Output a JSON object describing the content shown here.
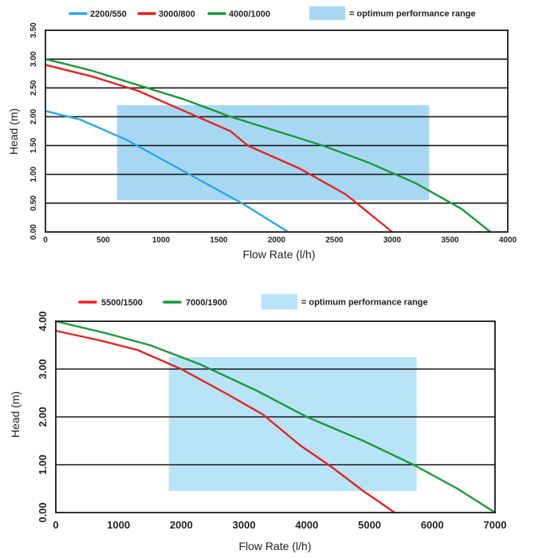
{
  "chart_data": [
    {
      "type": "line",
      "title": "",
      "xlabel": "Flow Rate (l/h)",
      "ylabel": "Head (m)",
      "xlim": [
        0,
        4000
      ],
      "ylim": [
        0,
        3.5
      ],
      "x_ticks": [
        "0",
        "500",
        "1000",
        "1500",
        "2000",
        "2500",
        "3000",
        "3500",
        "4000"
      ],
      "y_ticks": [
        "0.00",
        "0.50",
        "1.00",
        "1.50",
        "2.00",
        "2.50",
        "3.00",
        "3.50"
      ],
      "grid": "horizontal",
      "legend_position": "top",
      "optimum_range": {
        "label": "= optimum performance range",
        "x": [
          620,
          3320
        ],
        "y": [
          0.55,
          2.2
        ],
        "color": "#a7d8f3"
      },
      "series": [
        {
          "name": "2200/550",
          "color": "#2aa7e6",
          "points": [
            [
              0,
              2.1
            ],
            [
              300,
              1.95
            ],
            [
              700,
              1.6
            ],
            [
              1200,
              1.05
            ],
            [
              1700,
              0.5
            ],
            [
              2100,
              0.0
            ]
          ]
        },
        {
          "name": "3000/800",
          "color": "#e52421",
          "points": [
            [
              0,
              2.9
            ],
            [
              400,
              2.7
            ],
            [
              800,
              2.45
            ],
            [
              1200,
              2.1
            ],
            [
              1600,
              1.75
            ],
            [
              1750,
              1.5
            ],
            [
              2200,
              1.1
            ],
            [
              2600,
              0.65
            ],
            [
              3000,
              0.0
            ]
          ]
        },
        {
          "name": "4000/1000",
          "color": "#1a9a3a",
          "points": [
            [
              0,
              3.0
            ],
            [
              400,
              2.8
            ],
            [
              800,
              2.55
            ],
            [
              1200,
              2.3
            ],
            [
              1600,
              2.0
            ],
            [
              2000,
              1.75
            ],
            [
              2400,
              1.5
            ],
            [
              2800,
              1.2
            ],
            [
              3200,
              0.85
            ],
            [
              3600,
              0.4
            ],
            [
              3850,
              0.0
            ]
          ]
        }
      ]
    },
    {
      "type": "line",
      "title": "",
      "xlabel": "Flow Rate (l/h)",
      "ylabel": "Head (m)",
      "xlim": [
        0,
        7000
      ],
      "ylim": [
        0,
        4
      ],
      "x_ticks": [
        "0",
        "1000",
        "2000",
        "3000",
        "4000",
        "5000",
        "6000",
        "7000"
      ],
      "y_ticks": [
        "0.00",
        "1.00",
        "2.00",
        "3.00",
        "4.00"
      ],
      "grid": "horizontal",
      "legend_position": "top",
      "optimum_range": {
        "label": "= optimum performance range",
        "x": [
          1800,
          5750
        ],
        "y": [
          0.45,
          3.25
        ],
        "color": "#b9e3f7"
      },
      "series": [
        {
          "name": "5500/1500",
          "color": "#e52421",
          "points": [
            [
              0,
              3.8
            ],
            [
              700,
              3.6
            ],
            [
              1300,
              3.4
            ],
            [
              2000,
              3.0
            ],
            [
              2700,
              2.5
            ],
            [
              3300,
              2.05
            ],
            [
              3900,
              1.4
            ],
            [
              4400,
              0.95
            ],
            [
              4900,
              0.45
            ],
            [
              5400,
              0.0
            ]
          ]
        },
        {
          "name": "7000/1900",
          "color": "#1a9a3a",
          "points": [
            [
              0,
              4.0
            ],
            [
              800,
              3.75
            ],
            [
              1500,
              3.5
            ],
            [
              2300,
              3.1
            ],
            [
              3200,
              2.55
            ],
            [
              4000,
              2.0
            ],
            [
              4900,
              1.5
            ],
            [
              5700,
              1.0
            ],
            [
              6400,
              0.5
            ],
            [
              7000,
              0.0
            ]
          ]
        }
      ]
    }
  ]
}
